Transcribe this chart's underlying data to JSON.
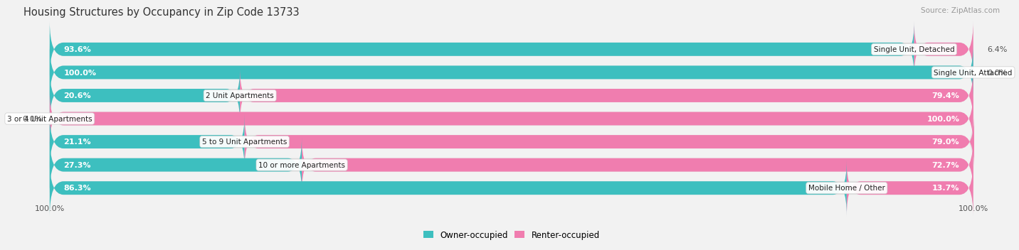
{
  "title": "Housing Structures by Occupancy in Zip Code 13733",
  "source": "Source: ZipAtlas.com",
  "categories": [
    "Single Unit, Detached",
    "Single Unit, Attached",
    "2 Unit Apartments",
    "3 or 4 Unit Apartments",
    "5 to 9 Unit Apartments",
    "10 or more Apartments",
    "Mobile Home / Other"
  ],
  "owner_pct": [
    93.6,
    100.0,
    20.6,
    0.0,
    21.1,
    27.3,
    86.3
  ],
  "renter_pct": [
    6.4,
    0.0,
    79.4,
    100.0,
    79.0,
    72.7,
    13.7
  ],
  "owner_color": "#3DBFBF",
  "renter_color": "#F07DAF",
  "bg_color": "#F2F2F2",
  "bar_bg_color": "#E0E0E0",
  "title_fontsize": 10.5,
  "source_fontsize": 7.5,
  "label_fontsize": 8,
  "category_fontsize": 7.5,
  "bar_height": 0.58,
  "x_axis_label_left": "100.0%",
  "x_axis_label_right": "100.0%",
  "legend_label_owner": "Owner-occupied",
  "legend_label_renter": "Renter-occupied"
}
